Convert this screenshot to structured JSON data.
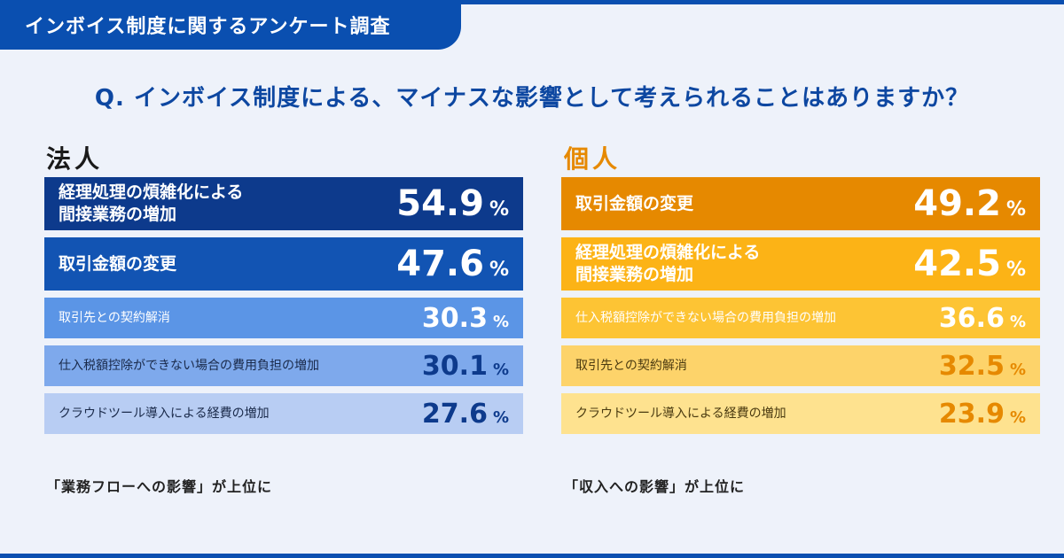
{
  "header": {
    "tab_title": "インボイス制度に関するアンケート調査"
  },
  "question": "Q. インボイス制度による、マイナスな影響として考えられることはありますか？",
  "colors": {
    "brand": "#0a4fb0",
    "corp_rows": [
      "#0d3a8c",
      "#1254b3",
      "#5b95e6",
      "#7ea9ec",
      "#b8cdf3"
    ],
    "corp_text": [
      "#ffffff",
      "#ffffff",
      "#ffffff",
      "#1a2a4a",
      "#1a2a4a"
    ],
    "corp_num": [
      "#ffffff",
      "#ffffff",
      "#ffffff",
      "#0d3a8c",
      "#0d3a8c"
    ],
    "ind_rows": [
      "#e68900",
      "#fcb316",
      "#fdc434",
      "#fdd36a",
      "#fee28f"
    ],
    "ind_text": [
      "#ffffff",
      "#ffffff",
      "#ffffff",
      "#4a3a10",
      "#4a3a10"
    ],
    "ind_num": [
      "#ffffff",
      "#ffffff",
      "#ffffff",
      "#e68900",
      "#e68900"
    ]
  },
  "chart_data": [
    {
      "type": "table",
      "title": "法人",
      "unit": "%",
      "categories": [
        "経理処理の煩雑化による\n間接業務の増加",
        "取引金額の変更",
        "取引先との契約解消",
        "仕入税額控除ができない場合の費用負担の増加",
        "クラウドツール導入による経費の増加"
      ],
      "values": [
        54.9,
        47.6,
        30.3,
        30.1,
        27.6
      ],
      "note": "「業務フローへの影響」が上位に"
    },
    {
      "type": "table",
      "title": "個人",
      "unit": "%",
      "categories": [
        "取引金額の変更",
        "経理処理の煩雑化による\n間接業務の増加",
        "仕入税額控除ができない場合の費用負担の増加",
        "取引先との契約解消",
        "クラウドツール導入による経費の増加"
      ],
      "values": [
        49.2,
        42.5,
        36.6,
        32.5,
        23.9
      ],
      "note": "「収入への影響」が上位に"
    }
  ]
}
